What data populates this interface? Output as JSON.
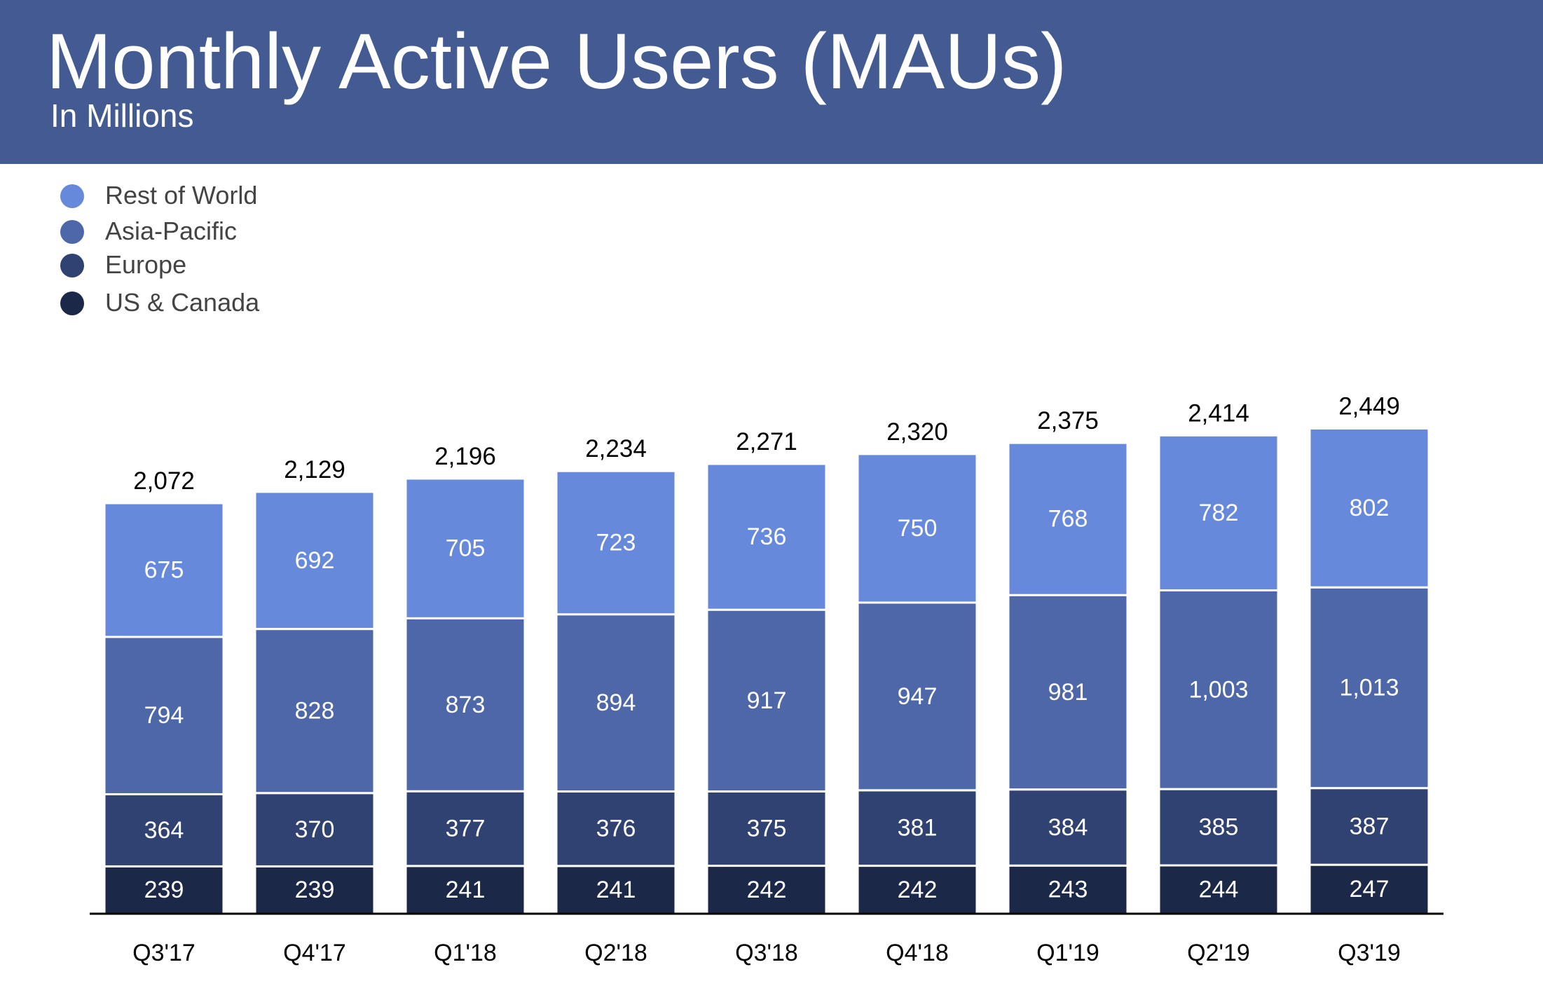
{
  "header": {
    "title": "Monthly Active Users (MAUs)",
    "subtitle": "In Millions"
  },
  "colors": {
    "header_bg": "#435b92",
    "rest_of_world": "#6689db",
    "asia_pacific": "#4e67a9",
    "europe": "#2f4272",
    "us_canada": "#1c2847",
    "axis": "#000000"
  },
  "chart_data": {
    "type": "bar",
    "stacked": true,
    "title": "Monthly Active Users (MAUs)",
    "subtitle": "In Millions",
    "legend_position": "top-left",
    "grid": false,
    "categories": [
      "Q3'17",
      "Q4'17",
      "Q1'18",
      "Q2'18",
      "Q3'18",
      "Q4'18",
      "Q1'19",
      "Q2'19",
      "Q3'19"
    ],
    "series": [
      {
        "name": "US & Canada",
        "color": "#1c2847",
        "values": [
          239,
          239,
          241,
          241,
          242,
          242,
          243,
          244,
          247
        ]
      },
      {
        "name": "Europe",
        "color": "#2f4272",
        "values": [
          364,
          370,
          377,
          376,
          375,
          381,
          384,
          385,
          387
        ]
      },
      {
        "name": "Asia-Pacific",
        "color": "#4e67a9",
        "values": [
          794,
          828,
          873,
          894,
          917,
          947,
          981,
          1003,
          1013
        ]
      },
      {
        "name": "Rest of World",
        "color": "#6689db",
        "values": [
          675,
          692,
          705,
          723,
          736,
          750,
          768,
          782,
          802
        ]
      }
    ],
    "totals": [
      2072,
      2129,
      2196,
      2234,
      2271,
      2320,
      2375,
      2414,
      2449
    ],
    "value_labels": [
      [
        "239",
        "239",
        "241",
        "241",
        "242",
        "242",
        "243",
        "244",
        "247"
      ],
      [
        "364",
        "370",
        "377",
        "376",
        "375",
        "381",
        "384",
        "385",
        "387"
      ],
      [
        "794",
        "828",
        "873",
        "894",
        "917",
        "947",
        "981",
        "1,003",
        "1,013"
      ],
      [
        "675",
        "692",
        "705",
        "723",
        "736",
        "750",
        "768",
        "782",
        "802"
      ]
    ],
    "total_labels": [
      "2,072",
      "2,129",
      "2,196",
      "2,234",
      "2,271",
      "2,320",
      "2,375",
      "2,414",
      "2,449"
    ],
    "legend_order": [
      "Rest of World",
      "Asia-Pacific",
      "Europe",
      "US & Canada"
    ]
  }
}
